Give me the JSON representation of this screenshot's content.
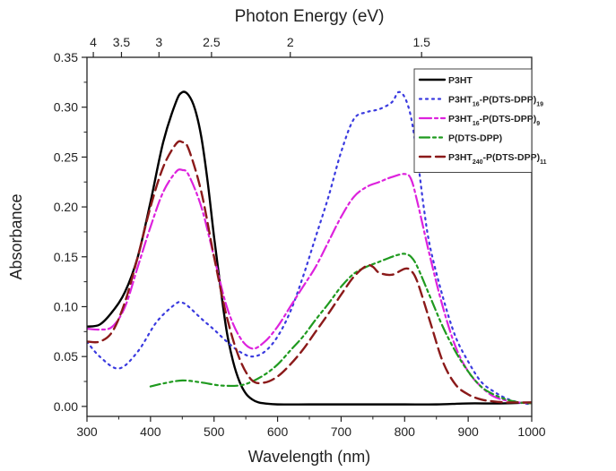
{
  "chart_data": {
    "type": "line",
    "title": "",
    "xlabel": "Wavelength (nm)",
    "ylabel": "Absorbance",
    "top_xlabel": "Photon Energy (eV)",
    "xlim": [
      300,
      1000
    ],
    "ylim": [
      -0.01,
      0.35
    ],
    "xticks": [
      300,
      400,
      500,
      600,
      700,
      800,
      900,
      1000
    ],
    "yticks": [
      0.0,
      0.05,
      0.1,
      0.15,
      0.2,
      0.25,
      0.3,
      0.35
    ],
    "top_ticks": [
      {
        "label": "4",
        "eV": 4
      },
      {
        "label": "3.5",
        "eV": 3.5
      },
      {
        "label": "3",
        "eV": 3
      },
      {
        "label": "2.5",
        "eV": 2.5
      },
      {
        "label": "2",
        "eV": 2
      },
      {
        "label": "1.5",
        "eV": 1.5
      }
    ],
    "grid": false,
    "legend_position": "top-right",
    "series": [
      {
        "name": "P3HT",
        "label_main": "P3HT",
        "label_sub1": "",
        "label_mid": "",
        "label_sub2": "",
        "color": "#000000",
        "dash": "",
        "width": 2.4,
        "x": [
          300,
          320,
          340,
          360,
          380,
          400,
          420,
          440,
          450,
          460,
          470,
          480,
          490,
          500,
          510,
          520,
          530,
          540,
          550,
          560,
          570,
          580,
          600,
          650,
          700,
          750,
          800,
          850,
          900,
          950,
          1000
        ],
        "y": [
          0.08,
          0.082,
          0.095,
          0.115,
          0.15,
          0.205,
          0.265,
          0.305,
          0.315,
          0.312,
          0.298,
          0.27,
          0.225,
          0.17,
          0.12,
          0.075,
          0.045,
          0.025,
          0.013,
          0.007,
          0.004,
          0.003,
          0.002,
          0.002,
          0.002,
          0.002,
          0.002,
          0.002,
          0.003,
          0.003,
          0.004
        ]
      },
      {
        "name": "P3HT16-P(DTS-DPP)19",
        "label_main": "P3HT",
        "label_sub1": "16",
        "label_mid": "-P(DTS-DPP)",
        "label_sub2": "19",
        "color": "#3a3adf",
        "dash": "2,5",
        "width": 2.2,
        "x": [
          300,
          320,
          350,
          380,
          410,
          440,
          450,
          460,
          480,
          500,
          520,
          540,
          560,
          580,
          600,
          620,
          640,
          660,
          680,
          700,
          720,
          740,
          760,
          780,
          790,
          800,
          810,
          820,
          830,
          840,
          860,
          880,
          900,
          920,
          940,
          960,
          980,
          1000
        ],
        "y": [
          0.065,
          0.05,
          0.038,
          0.055,
          0.085,
          0.103,
          0.104,
          0.1,
          0.088,
          0.077,
          0.065,
          0.055,
          0.05,
          0.055,
          0.07,
          0.095,
          0.13,
          0.17,
          0.21,
          0.255,
          0.288,
          0.295,
          0.298,
          0.305,
          0.315,
          0.31,
          0.29,
          0.25,
          0.2,
          0.16,
          0.11,
          0.07,
          0.045,
          0.025,
          0.015,
          0.008,
          0.004,
          0.002
        ]
      },
      {
        "name": "P3HT16-P(DTS-DPP)9",
        "label_main": "P3HT",
        "label_sub1": "16",
        "label_mid": "-P(DTS-DPP)",
        "label_sub2": "9",
        "color": "#dd22dd",
        "dash": "13,4,3,4",
        "width": 2.2,
        "x": [
          300,
          320,
          340,
          360,
          380,
          400,
          420,
          440,
          450,
          460,
          480,
          500,
          520,
          540,
          560,
          580,
          600,
          620,
          640,
          660,
          680,
          700,
          720,
          740,
          760,
          780,
          800,
          810,
          820,
          840,
          860,
          880,
          900,
          920,
          940,
          960,
          980,
          1000
        ],
        "y": [
          0.078,
          0.077,
          0.08,
          0.1,
          0.14,
          0.18,
          0.215,
          0.235,
          0.237,
          0.232,
          0.2,
          0.15,
          0.1,
          0.07,
          0.058,
          0.065,
          0.08,
          0.1,
          0.12,
          0.14,
          0.165,
          0.19,
          0.21,
          0.22,
          0.225,
          0.23,
          0.233,
          0.228,
          0.205,
          0.15,
          0.1,
          0.06,
          0.035,
          0.02,
          0.01,
          0.006,
          0.004,
          0.003
        ]
      },
      {
        "name": "P(DTS-DPP)",
        "label_main": "P(DTS-DPP)",
        "label_sub1": "",
        "label_mid": "",
        "label_sub2": "",
        "color": "#1f9a1f",
        "dash": "11,4,3,4,3,4",
        "width": 2.2,
        "x": [
          400,
          420,
          450,
          480,
          510,
          540,
          560,
          580,
          600,
          620,
          640,
          660,
          680,
          700,
          720,
          740,
          760,
          780,
          790,
          800,
          810,
          820,
          840,
          860,
          880,
          900,
          920,
          940,
          960,
          980,
          1000
        ],
        "y": [
          0.02,
          0.023,
          0.026,
          0.024,
          0.021,
          0.021,
          0.025,
          0.032,
          0.042,
          0.056,
          0.07,
          0.087,
          0.103,
          0.12,
          0.133,
          0.14,
          0.145,
          0.15,
          0.152,
          0.153,
          0.15,
          0.14,
          0.11,
          0.08,
          0.055,
          0.035,
          0.02,
          0.012,
          0.007,
          0.004,
          0.003
        ]
      },
      {
        "name": "P3HT240-P(DTS-DPP)11",
        "label_main": "P3HT",
        "label_sub1": "240",
        "label_mid": "-P(DTS-DPP)",
        "label_sub2": "11",
        "color": "#8b1a1a",
        "dash": "12,6",
        "width": 2.4,
        "x": [
          300,
          320,
          340,
          360,
          380,
          400,
          420,
          440,
          450,
          460,
          480,
          500,
          520,
          540,
          560,
          580,
          600,
          620,
          640,
          660,
          680,
          700,
          720,
          740,
          750,
          760,
          780,
          800,
          810,
          820,
          840,
          860,
          880,
          900,
          920,
          940,
          960,
          980,
          1000
        ],
        "y": [
          0.065,
          0.065,
          0.075,
          0.105,
          0.15,
          0.2,
          0.24,
          0.263,
          0.265,
          0.258,
          0.215,
          0.15,
          0.09,
          0.048,
          0.026,
          0.024,
          0.03,
          0.042,
          0.057,
          0.075,
          0.093,
          0.112,
          0.13,
          0.141,
          0.14,
          0.134,
          0.132,
          0.138,
          0.136,
          0.125,
          0.085,
          0.045,
          0.022,
          0.012,
          0.007,
          0.005,
          0.004,
          0.004,
          0.004
        ]
      }
    ]
  }
}
